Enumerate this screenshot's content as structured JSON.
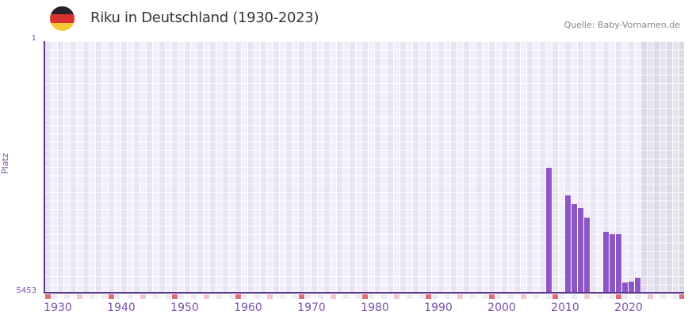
{
  "header": {
    "title": "Riku in Deutschland (1930-2023)",
    "source": "Quelle: Baby-Vornamen.de",
    "flag_icon": "german-flag-icon",
    "flag_colors": [
      "#262227",
      "#d93331",
      "#f4c833"
    ]
  },
  "chart": {
    "y_axis_label": "Platz",
    "y_top_label": "1",
    "y_bottom_label": "5453",
    "x_tick_labels": [
      "1930",
      "1940",
      "1950",
      "1960",
      "1970",
      "1980",
      "1990",
      "2000",
      "2010",
      "2020"
    ]
  },
  "chart_data": {
    "type": "bar",
    "title": "Riku in Deutschland (1930-2023)",
    "xlabel": "",
    "ylabel": "Platz",
    "x_range": [
      1930,
      2023
    ],
    "y_axis": {
      "min": 1,
      "max": 5453,
      "inverted": true,
      "note": "rank 1 at top, bars rise from rank 5453 baseline"
    },
    "x": [
      2009,
      2012,
      2013,
      2014,
      2015,
      2018,
      2019,
      2020,
      2021,
      2022,
      2023
    ],
    "values": [
      2745,
      3345,
      3540,
      3625,
      3815,
      4140,
      4185,
      4185,
      5230,
      5215,
      5125
    ],
    "series_name": "Platz (Rang)",
    "grid": true,
    "legend": false
  },
  "colors": {
    "bar": "#8d56c6",
    "axis_line": "#5b3794",
    "axis_text": "#7b52ae",
    "tick_decade": "#e06b75",
    "tick_half_decade": "#f2c6d0",
    "tick_odd_year": "#efeaf7",
    "tick_even_year": "#fbfafd",
    "plot_bg_light": "#f2effa",
    "plot_bg_dark": "#e9e4f3",
    "future_bg": "#e1deeb",
    "title_text": "#35353d",
    "source_text": "#85858d"
  }
}
